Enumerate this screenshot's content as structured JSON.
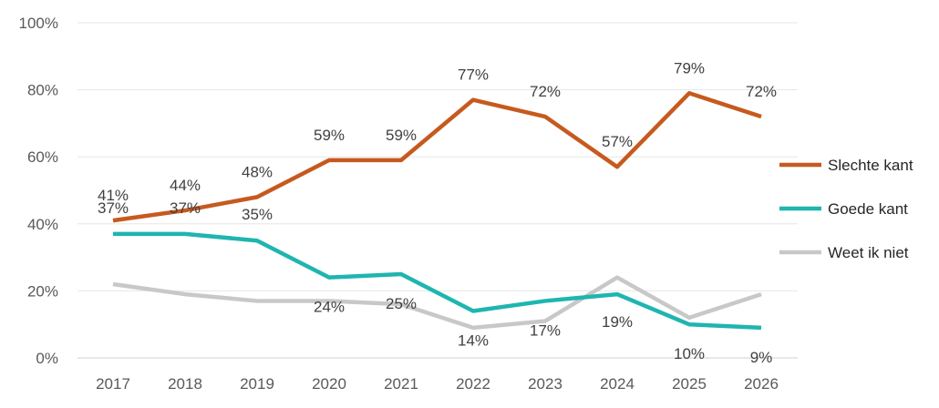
{
  "chart_data": {
    "type": "line",
    "title": "",
    "xlabel": "",
    "ylabel": "",
    "ylim": [
      0,
      100
    ],
    "y_ticks": [
      "0%",
      "20%",
      "40%",
      "60%",
      "80%",
      "100%"
    ],
    "grid": true,
    "legend": "right",
    "x": [
      "2017",
      "2018",
      "2019",
      "2020",
      "2021",
      "2022",
      "2023",
      "2024",
      "2025",
      "2026"
    ],
    "series": [
      {
        "name": "Slechte kant",
        "color": "#c65a1e",
        "values": [
          41,
          44,
          48,
          59,
          59,
          77,
          72,
          57,
          79,
          72
        ],
        "labels": [
          "41%",
          "44%",
          "48%",
          "59%",
          "59%",
          "77%",
          "72%",
          "57%",
          "79%",
          "72%"
        ]
      },
      {
        "name": "Goede kant",
        "color": "#1fb5b0",
        "values": [
          37,
          37,
          35,
          24,
          25,
          14,
          17,
          19,
          10,
          9
        ],
        "labels": [
          "37%",
          "37%",
          "35%",
          "24%",
          "25%",
          "14%",
          "17%",
          "19%",
          "10%",
          "9%"
        ]
      },
      {
        "name": "Weet ik niet",
        "color": "#c8c8c8",
        "values": [
          22,
          19,
          17,
          17,
          16,
          9,
          11,
          24,
          12,
          19
        ]
      }
    ]
  }
}
